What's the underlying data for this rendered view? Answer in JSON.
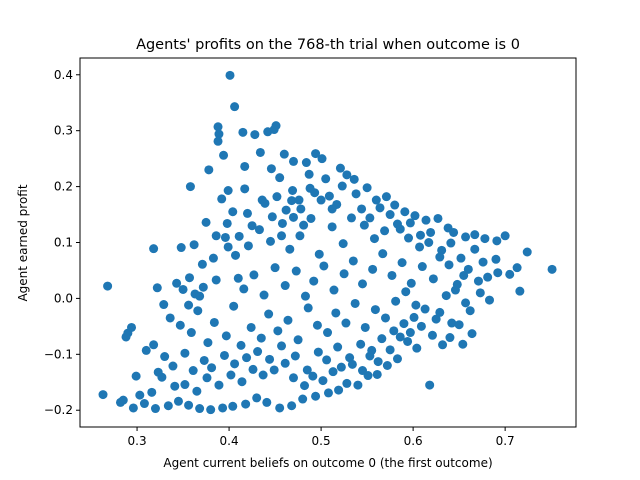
{
  "chart_data": {
    "type": "scatter",
    "title": "Agents' profits on the 768-th trial when outcome is 0",
    "xlabel": "Agent current beliefs on outcome 0 (the first outcome)",
    "ylabel": "Agent earned profit",
    "xlim": [
      0.238,
      0.777
    ],
    "ylim": [
      -0.23,
      0.43
    ],
    "xticks": [
      0.3,
      0.4,
      0.5,
      0.6,
      0.7
    ],
    "xtick_labels": [
      "0.3",
      "0.4",
      "0.5",
      "0.6",
      "0.7"
    ],
    "yticks": [
      -0.2,
      -0.1,
      0.0,
      0.1,
      0.2,
      0.3,
      0.4
    ],
    "ytick_labels": [
      "−0.2",
      "−0.1",
      "0.0",
      "0.1",
      "0.2",
      "0.3",
      "0.4"
    ],
    "grid": false,
    "legend": "none",
    "marker_color": "#1f77b4",
    "note_on_points": "Points approximated from the image; representative subset of the dense cloud.",
    "points": [
      [
        0.401,
        0.399
      ],
      [
        0.406,
        0.343
      ],
      [
        0.388,
        0.307
      ],
      [
        0.389,
        0.294
      ],
      [
        0.388,
        0.281
      ],
      [
        0.415,
        0.297
      ],
      [
        0.428,
        0.293
      ],
      [
        0.442,
        0.298
      ],
      [
        0.451,
        0.309
      ],
      [
        0.449,
        0.302
      ],
      [
        0.394,
        0.256
      ],
      [
        0.417,
        0.236
      ],
      [
        0.434,
        0.261
      ],
      [
        0.46,
        0.258
      ],
      [
        0.47,
        0.245
      ],
      [
        0.484,
        0.243
      ],
      [
        0.494,
        0.259
      ],
      [
        0.501,
        0.25
      ],
      [
        0.378,
        0.23
      ],
      [
        0.399,
        0.193
      ],
      [
        0.417,
        0.196
      ],
      [
        0.436,
        0.176
      ],
      [
        0.446,
        0.232
      ],
      [
        0.455,
        0.216
      ],
      [
        0.469,
        0.193
      ],
      [
        0.487,
        0.222
      ],
      [
        0.505,
        0.214
      ],
      [
        0.521,
        0.233
      ],
      [
        0.528,
        0.221
      ],
      [
        0.536,
        0.213
      ],
      [
        0.358,
        0.2
      ],
      [
        0.392,
        0.178
      ],
      [
        0.404,
        0.155
      ],
      [
        0.398,
        0.134
      ],
      [
        0.42,
        0.152
      ],
      [
        0.439,
        0.17
      ],
      [
        0.452,
        0.182
      ],
      [
        0.468,
        0.175
      ],
      [
        0.478,
        0.16
      ],
      [
        0.493,
        0.189
      ],
      [
        0.509,
        0.183
      ],
      [
        0.517,
        0.168
      ],
      [
        0.523,
        0.201
      ],
      [
        0.538,
        0.187
      ],
      [
        0.55,
        0.198
      ],
      [
        0.56,
        0.176
      ],
      [
        0.571,
        0.182
      ],
      [
        0.58,
        0.167
      ],
      [
        0.591,
        0.155
      ],
      [
        0.602,
        0.148
      ],
      [
        0.614,
        0.14
      ],
      [
        0.627,
        0.143
      ],
      [
        0.638,
        0.126
      ],
      [
        0.644,
        0.118
      ],
      [
        0.657,
        0.11
      ],
      [
        0.667,
        0.114
      ],
      [
        0.678,
        0.107
      ],
      [
        0.691,
        0.103
      ],
      [
        0.7,
        0.112
      ],
      [
        0.724,
        0.083
      ],
      [
        0.751,
        0.052
      ],
      [
        0.705,
        0.043
      ],
      [
        0.716,
        0.013
      ],
      [
        0.713,
        0.055
      ],
      [
        0.69,
        0.07
      ],
      [
        0.676,
        0.065
      ],
      [
        0.667,
        0.088
      ],
      [
        0.655,
        0.041
      ],
      [
        0.648,
        0.025
      ],
      [
        0.657,
        -0.008
      ],
      [
        0.664,
        -0.063
      ],
      [
        0.654,
        -0.082
      ],
      [
        0.64,
        -0.07
      ],
      [
        0.632,
        -0.083
      ],
      [
        0.618,
        -0.155
      ],
      [
        0.604,
        -0.089
      ],
      [
        0.594,
        -0.077
      ],
      [
        0.583,
        -0.108
      ],
      [
        0.572,
        -0.12
      ],
      [
        0.561,
        -0.136
      ],
      [
        0.551,
        -0.138
      ],
      [
        0.54,
        -0.155
      ],
      [
        0.528,
        -0.152
      ],
      [
        0.519,
        -0.164
      ],
      [
        0.508,
        -0.169
      ],
      [
        0.494,
        -0.175
      ],
      [
        0.48,
        -0.18
      ],
      [
        0.468,
        -0.192
      ],
      [
        0.455,
        -0.196
      ],
      [
        0.441,
        -0.186
      ],
      [
        0.43,
        -0.178
      ],
      [
        0.418,
        -0.189
      ],
      [
        0.404,
        -0.193
      ],
      [
        0.393,
        -0.196
      ],
      [
        0.38,
        -0.199
      ],
      [
        0.368,
        -0.197
      ],
      [
        0.356,
        -0.191
      ],
      [
        0.345,
        -0.184
      ],
      [
        0.334,
        -0.192
      ],
      [
        0.32,
        -0.197
      ],
      [
        0.308,
        -0.188
      ],
      [
        0.296,
        -0.196
      ],
      [
        0.285,
        -0.182
      ],
      [
        0.263,
        -0.172
      ],
      [
        0.303,
        -0.173
      ],
      [
        0.316,
        -0.168
      ],
      [
        0.327,
        -0.141
      ],
      [
        0.341,
        -0.157
      ],
      [
        0.352,
        -0.154
      ],
      [
        0.365,
        -0.166
      ],
      [
        0.376,
        -0.142
      ],
      [
        0.389,
        -0.155
      ],
      [
        0.402,
        -0.137
      ],
      [
        0.414,
        -0.149
      ],
      [
        0.426,
        -0.127
      ],
      [
        0.437,
        -0.137
      ],
      [
        0.449,
        -0.128
      ],
      [
        0.461,
        -0.116
      ],
      [
        0.472,
        -0.103
      ],
      [
        0.485,
        -0.128
      ],
      [
        0.497,
        -0.096
      ],
      [
        0.506,
        -0.11
      ],
      [
        0.518,
        -0.087
      ],
      [
        0.531,
        -0.106
      ],
      [
        0.543,
        -0.082
      ],
      [
        0.555,
        -0.093
      ],
      [
        0.566,
        -0.072
      ],
      [
        0.579,
        -0.058
      ],
      [
        0.59,
        -0.045
      ],
      [
        0.601,
        -0.034
      ],
      [
        0.613,
        -0.019
      ],
      [
        0.625,
        -0.037
      ],
      [
        0.636,
        0.005
      ],
      [
        0.646,
        0.015
      ],
      [
        0.268,
        0.022
      ],
      [
        0.29,
        -0.062
      ],
      [
        0.294,
        -0.052
      ],
      [
        0.288,
        -0.069
      ],
      [
        0.318,
        0.089
      ],
      [
        0.348,
        0.091
      ],
      [
        0.322,
        0.019
      ],
      [
        0.343,
        0.027
      ],
      [
        0.35,
        0.016
      ],
      [
        0.357,
        0.037
      ],
      [
        0.363,
        0.008
      ],
      [
        0.371,
        0.061
      ],
      [
        0.372,
        0.02
      ],
      [
        0.383,
        0.072
      ],
      [
        0.386,
        0.033
      ],
      [
        0.396,
        0.109
      ],
      [
        0.407,
        0.077
      ],
      [
        0.41,
        0.036
      ],
      [
        0.421,
        0.094
      ],
      [
        0.433,
        0.123
      ],
      [
        0.445,
        0.102
      ],
      [
        0.458,
        0.134
      ],
      [
        0.466,
        0.088
      ],
      [
        0.477,
        0.112
      ],
      [
        0.489,
        0.143
      ],
      [
        0.498,
        0.079
      ],
      [
        0.512,
        0.128
      ],
      [
        0.524,
        0.098
      ],
      [
        0.533,
        0.144
      ],
      [
        0.547,
        0.131
      ],
      [
        0.558,
        0.107
      ],
      [
        0.569,
        0.121
      ],
      [
        0.583,
        0.133
      ],
      [
        0.595,
        0.108
      ],
      [
        0.607,
        0.092
      ],
      [
        0.619,
        0.118
      ],
      [
        0.631,
        0.086
      ],
      [
        0.641,
        0.099
      ],
      [
        0.652,
        0.072
      ],
      [
        0.336,
        -0.035
      ],
      [
        0.347,
        -0.048
      ],
      [
        0.359,
        -0.061
      ],
      [
        0.366,
        -0.022
      ],
      [
        0.377,
        -0.079
      ],
      [
        0.384,
        -0.043
      ],
      [
        0.397,
        -0.067
      ],
      [
        0.405,
        -0.014
      ],
      [
        0.413,
        -0.084
      ],
      [
        0.424,
        -0.052
      ],
      [
        0.435,
        -0.071
      ],
      [
        0.443,
        -0.028
      ],
      [
        0.453,
        -0.058
      ],
      [
        0.464,
        -0.039
      ],
      [
        0.475,
        -0.074
      ],
      [
        0.486,
        -0.017
      ],
      [
        0.496,
        -0.048
      ],
      [
        0.507,
        -0.061
      ],
      [
        0.516,
        -0.026
      ],
      [
        0.527,
        -0.044
      ],
      [
        0.537,
        -0.009
      ],
      [
        0.548,
        -0.052
      ],
      [
        0.559,
        -0.02
      ],
      [
        0.57,
        -0.035
      ],
      [
        0.581,
        -0.005
      ],
      [
        0.592,
        0.012
      ],
      [
        0.603,
        -0.012
      ],
      [
        0.416,
        0.017
      ],
      [
        0.427,
        0.042
      ],
      [
        0.438,
        0.006
      ],
      [
        0.45,
        0.055
      ],
      [
        0.461,
        0.023
      ],
      [
        0.473,
        0.049
      ],
      [
        0.483,
        0.004
      ],
      [
        0.492,
        0.031
      ],
      [
        0.503,
        0.058
      ],
      [
        0.514,
        0.015
      ],
      [
        0.525,
        0.044
      ],
      [
        0.535,
        0.067
      ],
      [
        0.545,
        0.026
      ],
      [
        0.556,
        0.052
      ],
      [
        0.567,
        0.08
      ],
      [
        0.577,
        0.041
      ],
      [
        0.588,
        0.064
      ],
      [
        0.598,
        0.027
      ],
      [
        0.61,
        0.057
      ],
      [
        0.622,
        0.035
      ],
      [
        0.318,
        -0.083
      ],
      [
        0.33,
        -0.104
      ],
      [
        0.339,
        -0.121
      ],
      [
        0.352,
        -0.098
      ],
      [
        0.361,
        -0.129
      ],
      [
        0.373,
        -0.111
      ],
      [
        0.381,
        -0.124
      ],
      [
        0.395,
        -0.102
      ],
      [
        0.406,
        -0.117
      ],
      [
        0.419,
        -0.106
      ],
      [
        0.431,
        -0.095
      ],
      [
        0.444,
        -0.109
      ],
      [
        0.457,
        -0.085
      ],
      [
        0.47,
        -0.142
      ],
      [
        0.482,
        -0.156
      ],
      [
        0.491,
        -0.139
      ],
      [
        0.502,
        -0.147
      ],
      [
        0.513,
        -0.131
      ],
      [
        0.522,
        -0.123
      ],
      [
        0.534,
        -0.118
      ],
      [
        0.545,
        -0.129
      ],
      [
        0.553,
        -0.103
      ],
      [
        0.562,
        -0.113
      ],
      [
        0.575,
        -0.092
      ],
      [
        0.586,
        -0.069
      ],
      [
        0.597,
        -0.061
      ],
      [
        0.609,
        -0.05
      ],
      [
        0.621,
        -0.066
      ],
      [
        0.629,
        -0.025
      ],
      [
        0.642,
        -0.044
      ],
      [
        0.544,
        0.16
      ],
      [
        0.553,
        0.144
      ],
      [
        0.564,
        0.162
      ],
      [
        0.575,
        0.15
      ],
      [
        0.586,
        0.124
      ],
      [
        0.597,
        0.135
      ],
      [
        0.608,
        0.113
      ],
      [
        0.617,
        0.1
      ],
      [
        0.629,
        0.074
      ],
      [
        0.639,
        0.06
      ],
      [
        0.66,
        0.052
      ],
      [
        0.671,
        0.031
      ],
      [
        0.681,
        0.038
      ],
      [
        0.692,
        0.046
      ],
      [
        0.673,
        0.01
      ],
      [
        0.683,
        -0.003
      ],
      [
        0.662,
        -0.022
      ],
      [
        0.65,
        -0.047
      ],
      [
        0.356,
        -0.012
      ],
      [
        0.368,
        0.004
      ],
      [
        0.329,
        -0.011
      ],
      [
        0.31,
        -0.093
      ],
      [
        0.323,
        -0.132
      ],
      [
        0.299,
        -0.139
      ],
      [
        0.282,
        -0.186
      ],
      [
        0.447,
        0.146
      ],
      [
        0.462,
        0.158
      ],
      [
        0.476,
        0.176
      ],
      [
        0.488,
        0.197
      ],
      [
        0.5,
        0.176
      ],
      [
        0.512,
        0.16
      ],
      [
        0.481,
        0.131
      ],
      [
        0.47,
        0.145
      ],
      [
        0.457,
        0.112
      ],
      [
        0.425,
        0.13
      ],
      [
        0.411,
        0.111
      ],
      [
        0.399,
        0.092
      ],
      [
        0.386,
        0.112
      ],
      [
        0.375,
        0.136
      ],
      [
        0.362,
        0.096
      ]
    ]
  }
}
